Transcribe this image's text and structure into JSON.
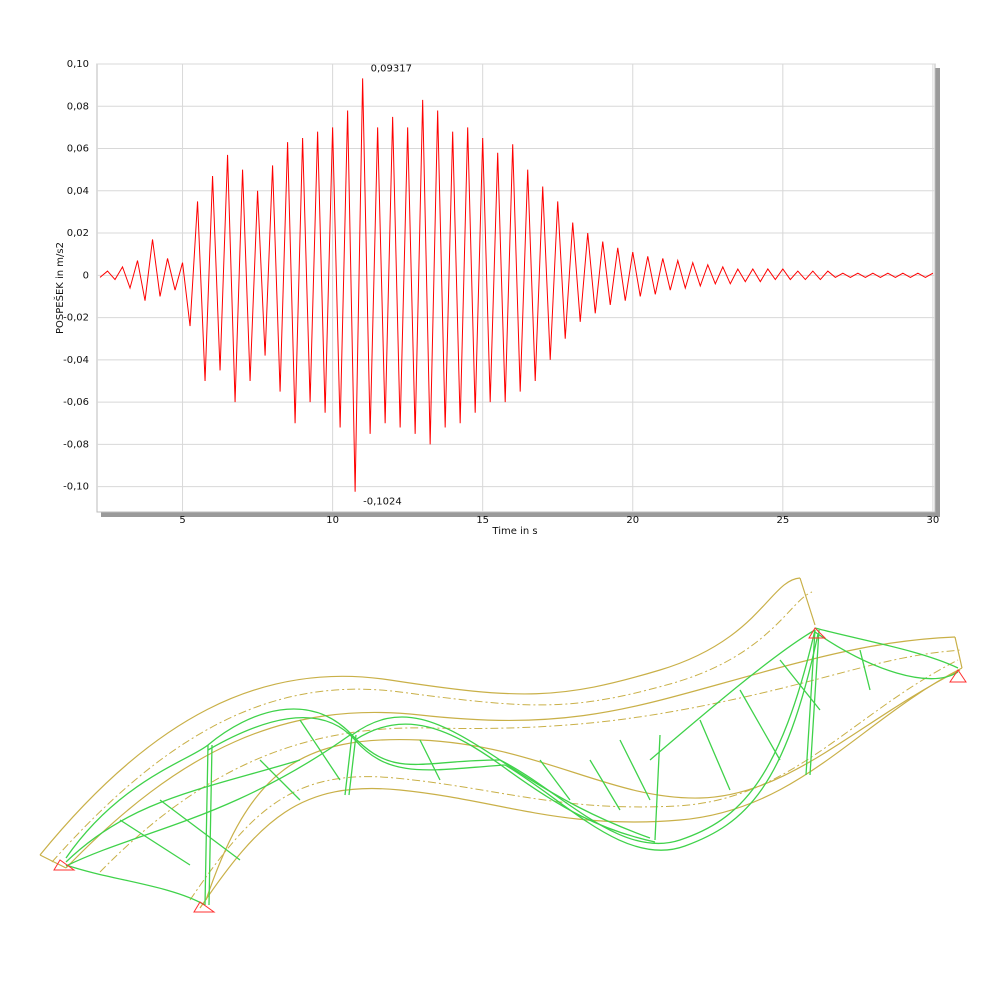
{
  "chart_data": {
    "type": "line",
    "y_label": "POSPEŠEK in m/s2",
    "x_label": "Time in s",
    "color": "#ff0000",
    "grid": true,
    "xlim": [
      2.15,
      30.07
    ],
    "ylim": [
      -0.112,
      0.1
    ],
    "xticks": [
      5,
      10,
      15,
      20,
      25,
      30
    ],
    "yticks": [
      {
        "value": 0.1,
        "label": "0,10"
      },
      {
        "value": 0.08,
        "label": "0,08"
      },
      {
        "value": 0.06,
        "label": "0,06"
      },
      {
        "value": 0.04,
        "label": "0,04"
      },
      {
        "value": 0.02,
        "label": "0,02"
      },
      0,
      {
        "value": -0.02,
        "label": "-0,02"
      },
      {
        "value": -0.04,
        "label": "-0,04"
      },
      {
        "value": -0.06,
        "label": "-0,06"
      },
      {
        "value": -0.08,
        "label": "-0,08"
      },
      {
        "value": -0.1,
        "label": "-0,10"
      }
    ],
    "x": [
      2.25,
      2.5,
      2.75,
      3.0,
      3.25,
      3.5,
      3.75,
      4.0,
      4.25,
      4.5,
      4.75,
      5.0,
      5.25,
      5.5,
      5.75,
      6.0,
      6.25,
      6.5,
      6.75,
      7.0,
      7.25,
      7.5,
      7.75,
      8.0,
      8.25,
      8.5,
      8.75,
      9.0,
      9.25,
      9.5,
      9.75,
      10.0,
      10.25,
      10.5,
      10.75,
      11.0,
      11.25,
      11.5,
      11.75,
      12.0,
      12.25,
      12.5,
      12.75,
      13.0,
      13.25,
      13.5,
      13.75,
      14.0,
      14.25,
      14.5,
      14.75,
      15.0,
      15.25,
      15.5,
      15.75,
      16.0,
      16.25,
      16.5,
      16.75,
      17.0,
      17.25,
      17.5,
      17.75,
      18.0,
      18.25,
      18.5,
      18.75,
      19.0,
      19.25,
      19.5,
      19.75,
      20.0,
      20.25,
      20.5,
      20.75,
      21.0,
      21.25,
      21.5,
      21.75,
      22.0,
      22.25,
      22.5,
      22.75,
      23.0,
      23.25,
      23.5,
      23.75,
      24.0,
      24.25,
      24.5,
      24.75,
      25.0,
      25.25,
      25.5,
      25.75,
      26.0,
      26.25,
      26.5,
      26.75,
      27.0,
      27.25,
      27.5,
      27.75,
      28.0,
      28.25,
      28.5,
      28.75,
      29.0,
      29.25,
      29.5,
      29.75,
      30.0
    ],
    "values": [
      -0.001,
      0.002,
      -0.002,
      0.004,
      -0.006,
      0.007,
      -0.012,
      0.017,
      -0.01,
      0.008,
      -0.007,
      0.006,
      -0.024,
      0.035,
      -0.05,
      0.047,
      -0.045,
      0.057,
      -0.06,
      0.05,
      -0.05,
      0.04,
      -0.038,
      0.052,
      -0.055,
      0.063,
      -0.07,
      0.065,
      -0.06,
      0.068,
      -0.065,
      0.07,
      -0.072,
      0.078,
      -0.1024,
      0.09317,
      -0.075,
      0.07,
      -0.07,
      0.075,
      -0.072,
      0.07,
      -0.075,
      0.083,
      -0.08,
      0.078,
      -0.072,
      0.068,
      -0.07,
      0.07,
      -0.065,
      0.065,
      -0.06,
      0.058,
      -0.06,
      0.062,
      -0.055,
      0.05,
      -0.05,
      0.042,
      -0.04,
      0.035,
      -0.03,
      0.025,
      -0.022,
      0.02,
      -0.018,
      0.016,
      -0.014,
      0.013,
      -0.012,
      0.011,
      -0.01,
      0.009,
      -0.009,
      0.008,
      -0.007,
      0.007,
      -0.006,
      0.006,
      -0.005,
      0.005,
      -0.004,
      0.004,
      -0.004,
      0.003,
      -0.003,
      0.003,
      -0.003,
      0.003,
      -0.002,
      0.003,
      -0.002,
      0.002,
      -0.002,
      0.002,
      -0.002,
      0.002,
      -0.001,
      0.001,
      -0.001,
      0.001,
      -0.001,
      0.001,
      -0.001,
      0.001,
      -0.001,
      0.001,
      -0.001,
      0.001,
      -0.001,
      0.001
    ],
    "value_labels": [
      null,
      null,
      null,
      null,
      null,
      null,
      null,
      null,
      null,
      null,
      null,
      null,
      null,
      null,
      null,
      null,
      null,
      null,
      null,
      null,
      null,
      null,
      null,
      null,
      null,
      null,
      null,
      null,
      null,
      null,
      null,
      null,
      null,
      null,
      "-0,1024",
      "0,09317",
      null,
      null,
      null,
      null,
      null,
      null,
      null,
      null,
      null,
      null,
      null,
      null,
      null,
      null,
      null,
      null,
      null,
      null,
      null,
      null,
      null,
      null,
      null,
      null,
      null,
      null,
      null,
      null,
      null,
      null,
      null,
      null,
      null,
      null,
      null,
      null,
      null,
      null,
      null,
      null,
      null,
      null,
      null,
      null,
      null,
      null,
      null,
      null,
      null,
      null,
      null,
      null,
      null,
      null,
      null,
      null,
      null,
      null,
      null,
      null,
      null,
      null,
      null,
      null,
      null,
      null,
      null,
      null,
      null,
      null,
      null,
      null,
      null,
      null,
      null,
      null
    ]
  }
}
